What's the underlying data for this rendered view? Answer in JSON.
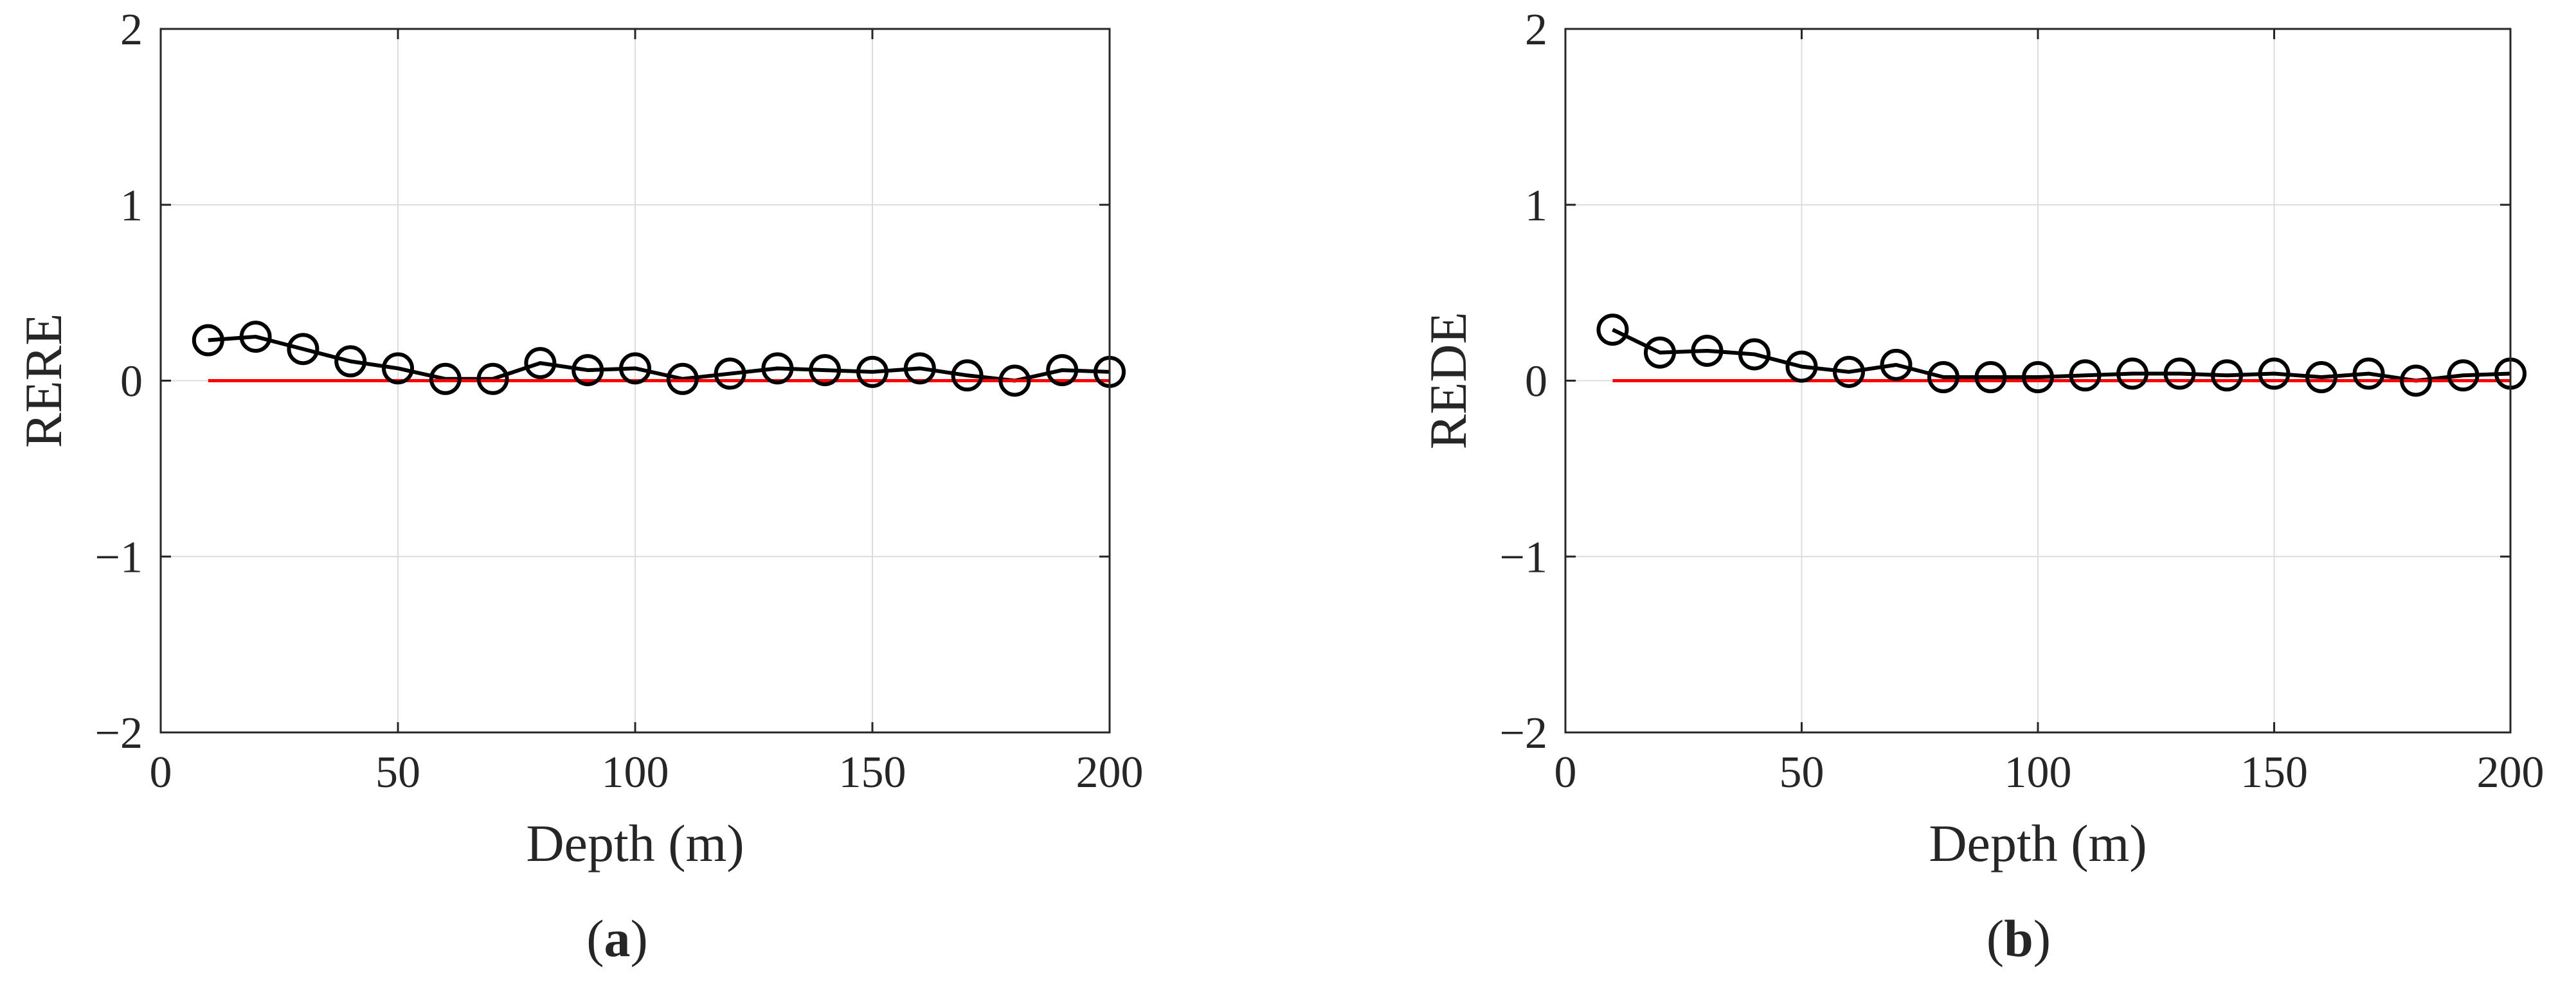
{
  "chart_data": [
    {
      "type": "line",
      "panel_label": "(a)",
      "xlabel": "Depth (m)",
      "ylabel": "RERE",
      "xlim": [
        0,
        200
      ],
      "ylim": [
        -2,
        2
      ],
      "x_ticks": [
        "0",
        "50",
        "100",
        "150",
        "200"
      ],
      "y_ticks": [
        "−2",
        "−1",
        "0",
        "1",
        "2"
      ],
      "grid": true,
      "series": [
        {
          "color": "#000000",
          "marker": "circle",
          "x": [
            10,
            20,
            30,
            40,
            50,
            60,
            70,
            80,
            90,
            100,
            110,
            120,
            130,
            140,
            150,
            160,
            170,
            180,
            190,
            200
          ],
          "values": [
            0.23,
            0.25,
            0.18,
            0.11,
            0.07,
            0.01,
            0.01,
            0.1,
            0.06,
            0.07,
            0.01,
            0.04,
            0.07,
            0.06,
            0.05,
            0.07,
            0.03,
            0.0,
            0.06,
            0.05
          ]
        },
        {
          "color": "#ff0000",
          "marker": "none",
          "x": [
            10,
            200
          ],
          "values": [
            0,
            0
          ]
        }
      ]
    },
    {
      "type": "line",
      "panel_label": "(b)",
      "xlabel": "Depth (m)",
      "ylabel": "REDE",
      "xlim": [
        0,
        200
      ],
      "ylim": [
        -2,
        2
      ],
      "x_ticks": [
        "0",
        "50",
        "100",
        "150",
        "200"
      ],
      "y_ticks": [
        "−2",
        "−1",
        "0",
        "1",
        "2"
      ],
      "grid": true,
      "series": [
        {
          "color": "#000000",
          "marker": "circle",
          "x": [
            10,
            20,
            30,
            40,
            50,
            60,
            70,
            80,
            90,
            100,
            110,
            120,
            130,
            140,
            150,
            160,
            170,
            180,
            190,
            200
          ],
          "values": [
            0.29,
            0.16,
            0.17,
            0.15,
            0.08,
            0.05,
            0.09,
            0.02,
            0.02,
            0.02,
            0.03,
            0.04,
            0.04,
            0.03,
            0.04,
            0.02,
            0.04,
            0.0,
            0.03,
            0.04
          ]
        },
        {
          "color": "#ff0000",
          "marker": "none",
          "x": [
            10,
            200
          ],
          "values": [
            0,
            0
          ]
        }
      ]
    }
  ]
}
